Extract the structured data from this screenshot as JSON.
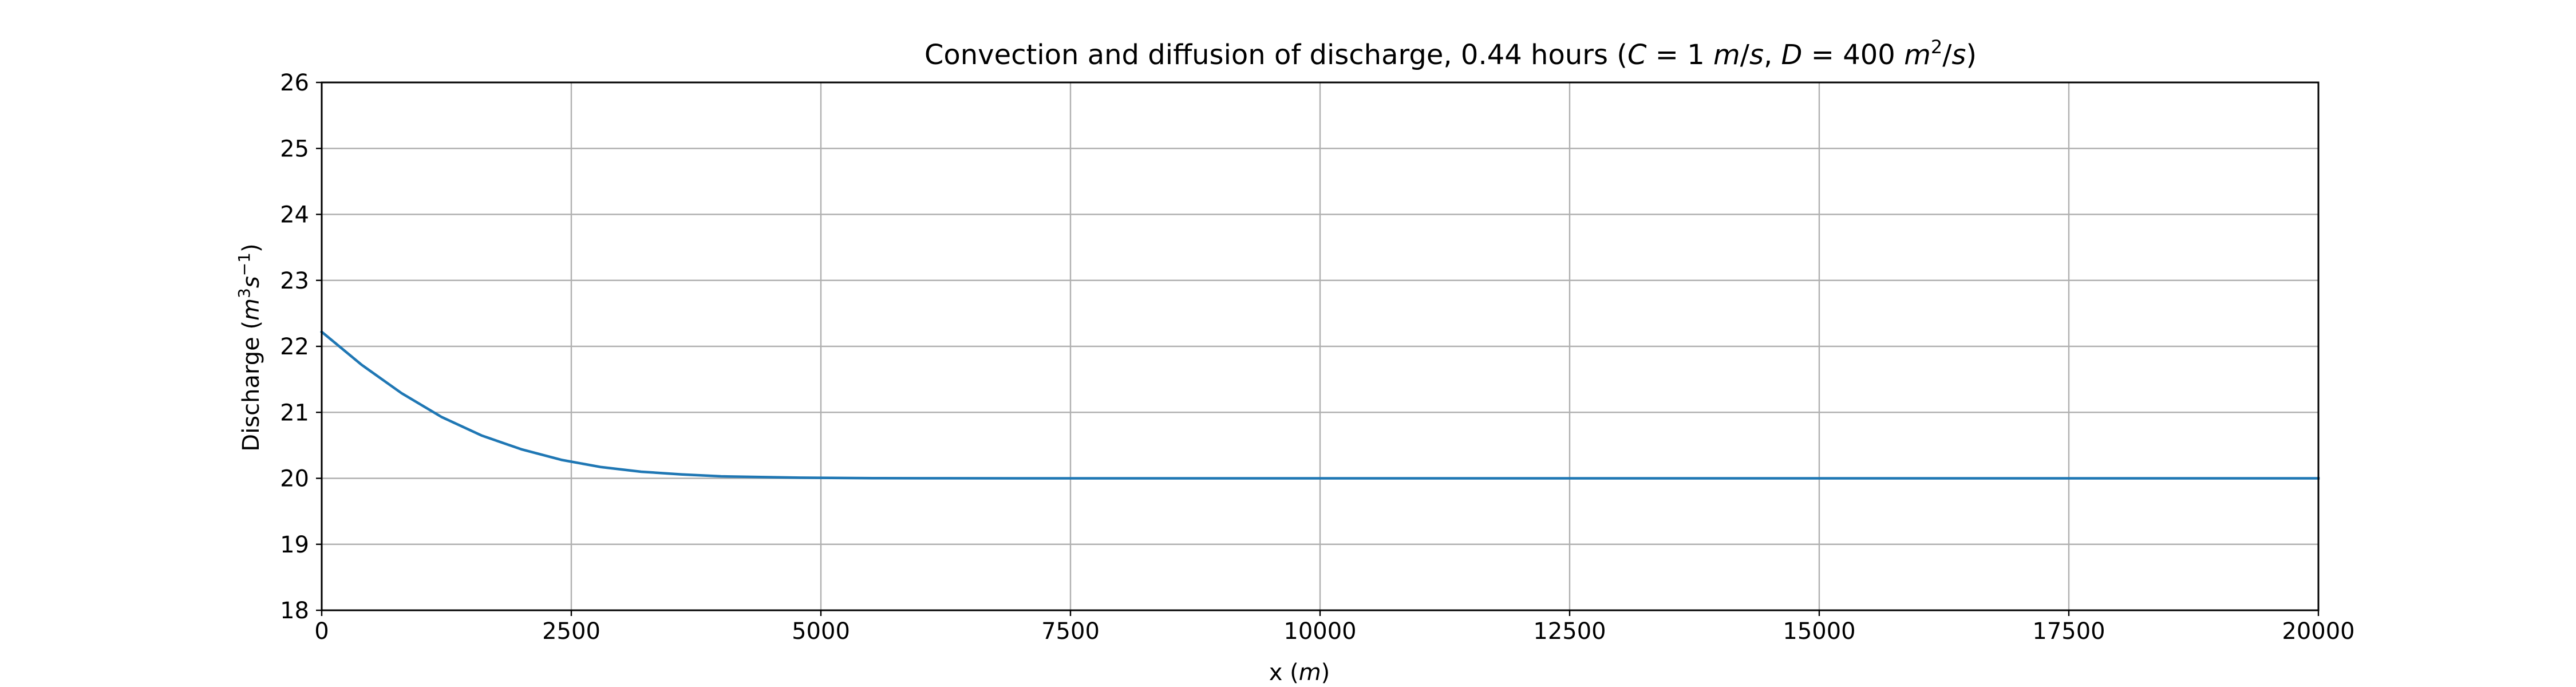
{
  "chart_data": {
    "type": "line",
    "title": {
      "prefix": "Convection and diffusion of discharge, 0.44 hours (",
      "c_var": "C",
      "eq1": " = 1 ",
      "c_unit_m": "m",
      "slash1": "/",
      "c_unit_s": "s",
      "sep": ", ",
      "d_var": "D",
      "eq2": " = 400 ",
      "d_unit_m": "m",
      "d_unit_exp": "2",
      "slash2": "/",
      "d_unit_s": "s",
      "suffix": ")"
    },
    "xlabel": {
      "text": "x (",
      "unit": "m",
      "close": ")"
    },
    "ylabel": {
      "text": "Discharge (",
      "m": "m",
      "m_exp": "3",
      "s": "s",
      "s_exp": "−1",
      "close": ")"
    },
    "xlim": [
      0,
      20000
    ],
    "ylim": [
      18,
      26
    ],
    "x_ticks": [
      "0",
      "2500",
      "5000",
      "7500",
      "10000",
      "12500",
      "15000",
      "17500",
      "20000"
    ],
    "y_ticks": [
      "18",
      "19",
      "20",
      "21",
      "22",
      "23",
      "24",
      "25",
      "26"
    ],
    "grid": true,
    "series": [
      {
        "color": "#1f77b4",
        "x": [
          0,
          400,
          800,
          1200,
          1600,
          2000,
          2400,
          2800,
          3200,
          3600,
          4000,
          4400,
          4800,
          5200,
          5600,
          6000,
          7000,
          8000,
          10000,
          12500,
          15000,
          17500,
          20000
        ],
        "y": [
          22.22,
          21.72,
          21.29,
          20.93,
          20.65,
          20.44,
          20.28,
          20.17,
          20.1,
          20.06,
          20.03,
          20.02,
          20.01,
          20.005,
          20.002,
          20.001,
          20.0,
          20.0,
          20.0,
          20.0,
          20.0,
          20.0,
          20.0
        ]
      }
    ]
  }
}
